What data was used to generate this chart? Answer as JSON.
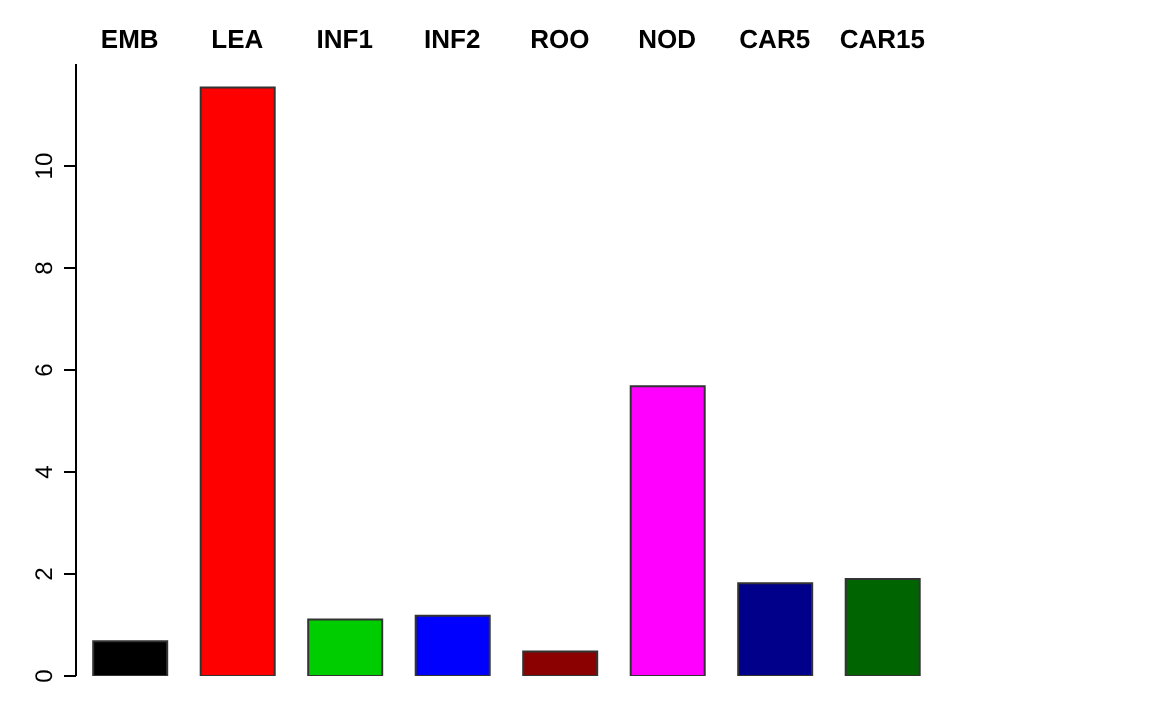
{
  "chart_data": {
    "type": "bar",
    "categories": [
      "EMB",
      "LEA",
      "INF1",
      "INF2",
      "ROO",
      "NOD",
      "CAR5",
      "CAR15"
    ],
    "values": [
      0.68,
      11.54,
      1.11,
      1.18,
      0.48,
      5.68,
      1.82,
      1.9
    ],
    "colors": [
      "#000000",
      "#ff0000",
      "#00cd00",
      "#0000ff",
      "#8b0000",
      "#ff00ff",
      "#00008b",
      "#006400"
    ],
    "ylim": [
      0,
      12
    ],
    "yticks": [
      0,
      2,
      4,
      6,
      8,
      10
    ],
    "grid": false
  }
}
